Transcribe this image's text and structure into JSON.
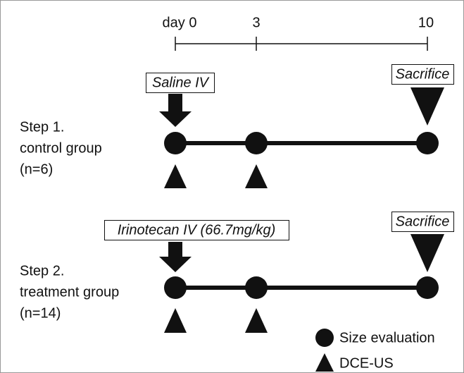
{
  "timeline": {
    "labels": [
      "day 0",
      "3",
      "10"
    ]
  },
  "steps": [
    {
      "title": "Step 1.",
      "group": "control group",
      "n": "(n=6)",
      "treatment": "Saline IV",
      "end": "Sacrifice"
    },
    {
      "title": "Step 2.",
      "group": "treatment group",
      "n": "(n=14)",
      "treatment": "Irinotecan IV (66.7mg/kg)",
      "end": "Sacrifice"
    }
  ],
  "legend": {
    "circle": "Size evaluation",
    "triangle": "DCE-US"
  }
}
